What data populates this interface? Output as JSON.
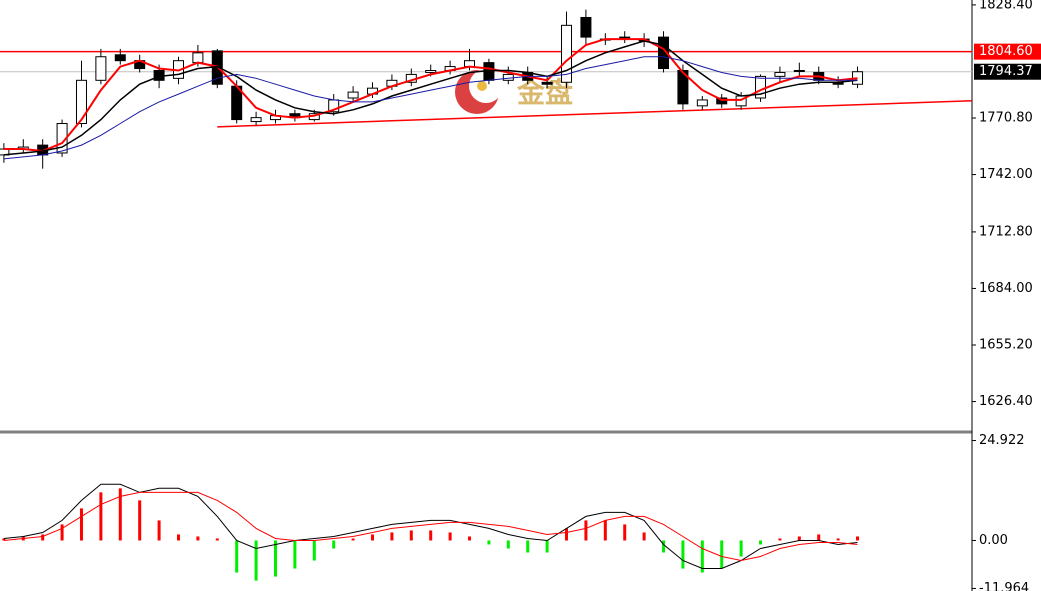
{
  "chart_data": [
    {
      "type": "candlestick",
      "open": [
        1752,
        1755,
        1757,
        1753,
        1768,
        1790,
        1803,
        1800,
        1795,
        1791,
        1799,
        1805,
        1787,
        1769,
        1770,
        1773,
        1770,
        1774,
        1781,
        1783,
        1787,
        1789,
        1794,
        1795,
        1797,
        1799,
        1790,
        1794,
        1789,
        1789,
        1822,
        1811,
        1812,
        1811,
        1812,
        1795,
        1777,
        1781,
        1777,
        1781,
        1792,
        1795,
        1794,
        1789,
        1788
      ],
      "high": [
        1758,
        1760,
        1760,
        1770,
        1800,
        1806,
        1806,
        1803,
        1798,
        1802,
        1808,
        1806,
        1790,
        1774,
        1775,
        1775,
        1775,
        1783,
        1787,
        1789,
        1793,
        1796,
        1798,
        1800,
        1806,
        1801,
        1797,
        1797,
        1792,
        1825,
        1826,
        1814,
        1815,
        1814,
        1815,
        1798,
        1782,
        1783,
        1784,
        1793,
        1797,
        1799,
        1797,
        1792,
        1797
      ],
      "low": [
        1748,
        1753,
        1745,
        1751,
        1766,
        1788,
        1798,
        1794,
        1786,
        1788,
        1797,
        1786,
        1768,
        1767,
        1768,
        1769,
        1769,
        1772,
        1779,
        1781,
        1785,
        1787,
        1792,
        1793,
        1795,
        1788,
        1788,
        1788,
        1786,
        1786,
        1808,
        1808,
        1809,
        1807,
        1794,
        1775,
        1775,
        1776,
        1775,
        1779,
        1789,
        1792,
        1788,
        1786,
        1786
      ],
      "close": [
        1755,
        1756,
        1752,
        1768,
        1790,
        1802,
        1800,
        1796,
        1790,
        1800,
        1804,
        1788,
        1770,
        1771,
        1772,
        1771,
        1773,
        1780,
        1784,
        1786,
        1790,
        1793,
        1795,
        1797,
        1800,
        1790,
        1793,
        1790,
        1788,
        1818,
        1812,
        1811,
        1812,
        1810,
        1796,
        1778,
        1780,
        1778,
        1782,
        1792,
        1794,
        1795,
        1790,
        1788,
        1794.37
      ],
      "up_color": "#ffffff",
      "down_color": "#000000",
      "series": [
        {
          "color": "#ff0000",
          "values": [
            1755,
            1755,
            1754,
            1758,
            1770,
            1785,
            1797,
            1800,
            1796,
            1795,
            1799,
            1797,
            1787,
            1776,
            1772,
            1771,
            1772,
            1775,
            1779,
            1783,
            1787,
            1790,
            1793,
            1795,
            1797,
            1796,
            1794,
            1792,
            1790,
            1800,
            1808,
            1811,
            1811,
            1811,
            1806,
            1794,
            1785,
            1780,
            1780,
            1785,
            1789,
            1792,
            1792,
            1790,
            1791
          ]
        },
        {
          "color": "#000000",
          "values": [
            1752,
            1753,
            1754,
            1756,
            1762,
            1770,
            1780,
            1788,
            1792,
            1793,
            1796,
            1797,
            1792,
            1785,
            1780,
            1776,
            1774,
            1773,
            1775,
            1778,
            1782,
            1785,
            1788,
            1791,
            1794,
            1795,
            1795,
            1794,
            1792,
            1795,
            1800,
            1804,
            1807,
            1810,
            1808,
            1800,
            1793,
            1786,
            1782,
            1783,
            1786,
            1788,
            1789,
            1789,
            1790
          ]
        },
        {
          "color": "#1a1aa6",
          "values": [
            1750,
            1751,
            1752,
            1754,
            1757,
            1762,
            1768,
            1774,
            1779,
            1783,
            1787,
            1791,
            1793,
            1791,
            1788,
            1785,
            1782,
            1780,
            1779,
            1779,
            1781,
            1783,
            1785,
            1787,
            1789,
            1790,
            1791,
            1792,
            1792,
            1793,
            1796,
            1798,
            1800,
            1802,
            1802,
            1800,
            1797,
            1794,
            1792,
            1791,
            1791,
            1791,
            1790,
            1790,
            1790
          ]
        }
      ],
      "xlim": [
        -0.2,
        49.9
      ],
      "ylim": [
        1610.9,
        1830.9
      ],
      "yticks": [
        {
          "value": 1828.4,
          "label": "1828.40"
        },
        {
          "value": 1770.8,
          "label": "1770.80"
        },
        {
          "value": 1742,
          "label": "1742.00"
        },
        {
          "value": 1712.8,
          "label": "1712.80"
        },
        {
          "value": 1684,
          "label": "1684.00"
        },
        {
          "value": 1655.2,
          "label": "1655.20"
        },
        {
          "value": 1626.4,
          "label": "1626.40"
        }
      ],
      "level_line": {
        "value": 1804.6,
        "label": "1804.60",
        "color": "#ff0000"
      },
      "last_price": {
        "value": 1794.37,
        "label": "1794.37",
        "color": "#000000"
      },
      "trendline": {
        "x": [
          11,
          49.9
        ],
        "y": [
          1766.3,
          1779.6
        ],
        "color": "#ff0000"
      },
      "watermark": "金盘"
    },
    {
      "type": "macd",
      "histogram": [
        0.5,
        1,
        1.5,
        4,
        8,
        12,
        13,
        10,
        5,
        1.5,
        1,
        0.5,
        -8,
        -10,
        -9,
        -7,
        -5,
        -2,
        0.5,
        1.5,
        2,
        2.5,
        2.5,
        2,
        1,
        -1,
        -2,
        -3,
        -3,
        3,
        5,
        5,
        4,
        2,
        -3,
        -7,
        -8,
        -7,
        -4,
        -1,
        0.5,
        1,
        1.5,
        0.5,
        1
      ],
      "up_color": "#ff0000",
      "down_color": "#00ee00",
      "series": [
        {
          "color": "#000000",
          "values": [
            0.5,
            1,
            2,
            5,
            10,
            14,
            14,
            12,
            13,
            13,
            11,
            6,
            0,
            -2,
            -1,
            0,
            0.5,
            1,
            2,
            3,
            4,
            4.5,
            5,
            5,
            4,
            3,
            1.5,
            0.5,
            0,
            3,
            6,
            7,
            7,
            5,
            -1,
            -5,
            -7,
            -7,
            -5,
            -2,
            -1,
            0,
            0,
            -1,
            -0.5
          ]
        },
        {
          "color": "#ff0000",
          "values": [
            0,
            0.5,
            1,
            3,
            6,
            9,
            11,
            12,
            12,
            12,
            12,
            10,
            7,
            3,
            0.5,
            0,
            0,
            0.5,
            1,
            2,
            3,
            3.5,
            4,
            4.5,
            4.5,
            4,
            3.5,
            2.5,
            1.5,
            2,
            3,
            5,
            6,
            6,
            4,
            1,
            -2,
            -4,
            -5,
            -4,
            -2,
            -1,
            -0.5,
            -0.5,
            -1
          ]
        }
      ],
      "xlim": [
        -0.2,
        49.9
      ],
      "ylim": [
        -12.6,
        26.8
      ],
      "yticks": [
        24.922,
        {
          "value": 0,
          "label": "0.00"
        },
        -11.964
      ]
    }
  ]
}
